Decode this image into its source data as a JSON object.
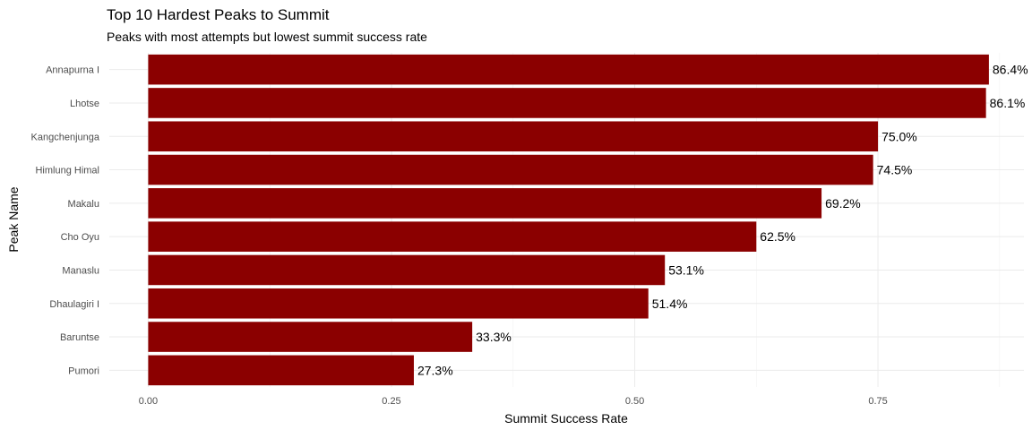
{
  "chart_data": {
    "type": "bar",
    "orientation": "horizontal",
    "title": "Top 10 Hardest Peaks to Summit",
    "subtitle": "Peaks with most attempts but lowest summit success rate",
    "xlabel": "Summit Success Rate",
    "ylabel": "Peak Name",
    "categories": [
      "Annapurna I",
      "Lhotse",
      "Kangchenjunga",
      "Himlung Himal",
      "Makalu",
      "Cho Oyu",
      "Manaslu",
      "Dhaulagiri I",
      "Baruntse",
      "Pumori"
    ],
    "values": [
      0.864,
      0.861,
      0.75,
      0.745,
      0.692,
      0.625,
      0.531,
      0.514,
      0.333,
      0.273
    ],
    "data_labels": [
      "86.4%",
      "86.1%",
      "75.0%",
      "74.5%",
      "69.2%",
      "62.5%",
      "53.1%",
      "51.4%",
      "33.3%",
      "27.3%"
    ],
    "x_ticks": [
      0,
      0.25,
      0.5,
      0.75
    ],
    "x_tick_labels": [
      "0.00",
      "0.25",
      "0.50",
      "0.75"
    ],
    "xlim": [
      -0.04,
      0.9
    ],
    "grid": true,
    "legend": "none",
    "bar_color": "#8b0000"
  }
}
